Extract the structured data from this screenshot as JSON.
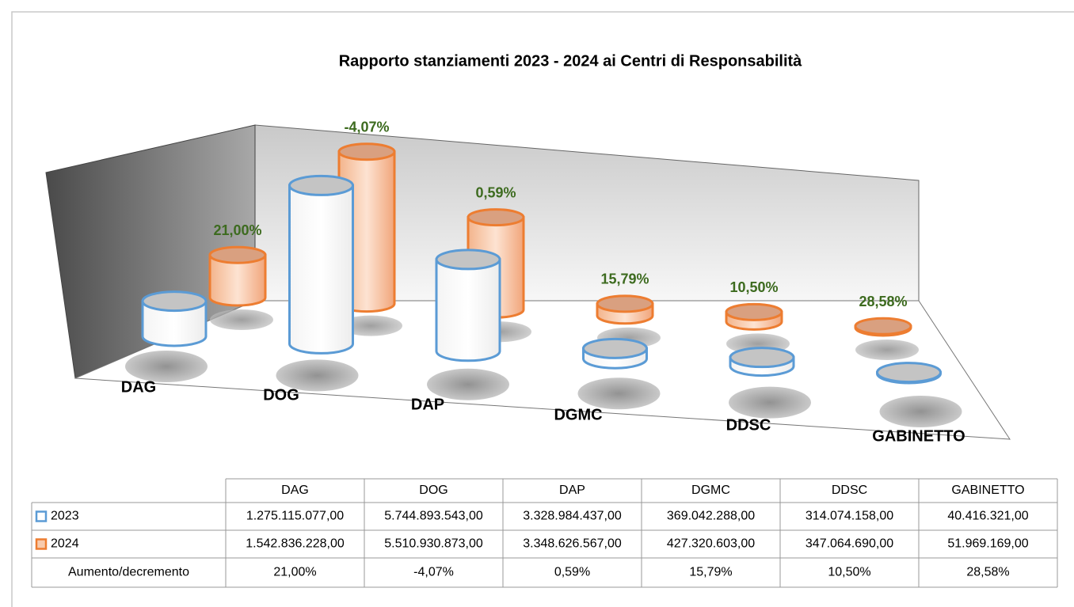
{
  "chart_data": {
    "type": "cylinder3d",
    "title": "Rapporto stanziamenti 2023 - 2024 ai Centri di Responsabilità",
    "categories": [
      "DAG",
      "DOG",
      "DAP",
      "DGMC",
      "DDSC",
      "GABINETTO"
    ],
    "series": [
      {
        "name": "2023",
        "color": "#5b9bd5",
        "values": [
          1275115077.0,
          5744893543.0,
          3328984437.0,
          369042288.0,
          314074158.0,
          40416321.0
        ],
        "value_labels": [
          "1.275.115.077,00",
          "5.744.893.543,00",
          "3.328.984.437,00",
          "369.042.288,00",
          "314.074.158,00",
          "40.416.321,00"
        ]
      },
      {
        "name": "2024",
        "color": "#ed7d31",
        "values": [
          1542836228.0,
          5510930873.0,
          3348626567.0,
          427320603.0,
          347064690.0,
          51969169.0
        ],
        "value_labels": [
          "1.542.836.228,00",
          "5.510.930.873,00",
          "3.348.626.567,00",
          "427.320.603,00",
          "347.064.690,00",
          "51.969.169,00"
        ]
      }
    ],
    "change": {
      "name": "Aumento/decremento",
      "labels": [
        "21,00%",
        "-4,07%",
        "0,59%",
        "15,79%",
        "10,50%",
        "28,58%"
      ]
    }
  }
}
